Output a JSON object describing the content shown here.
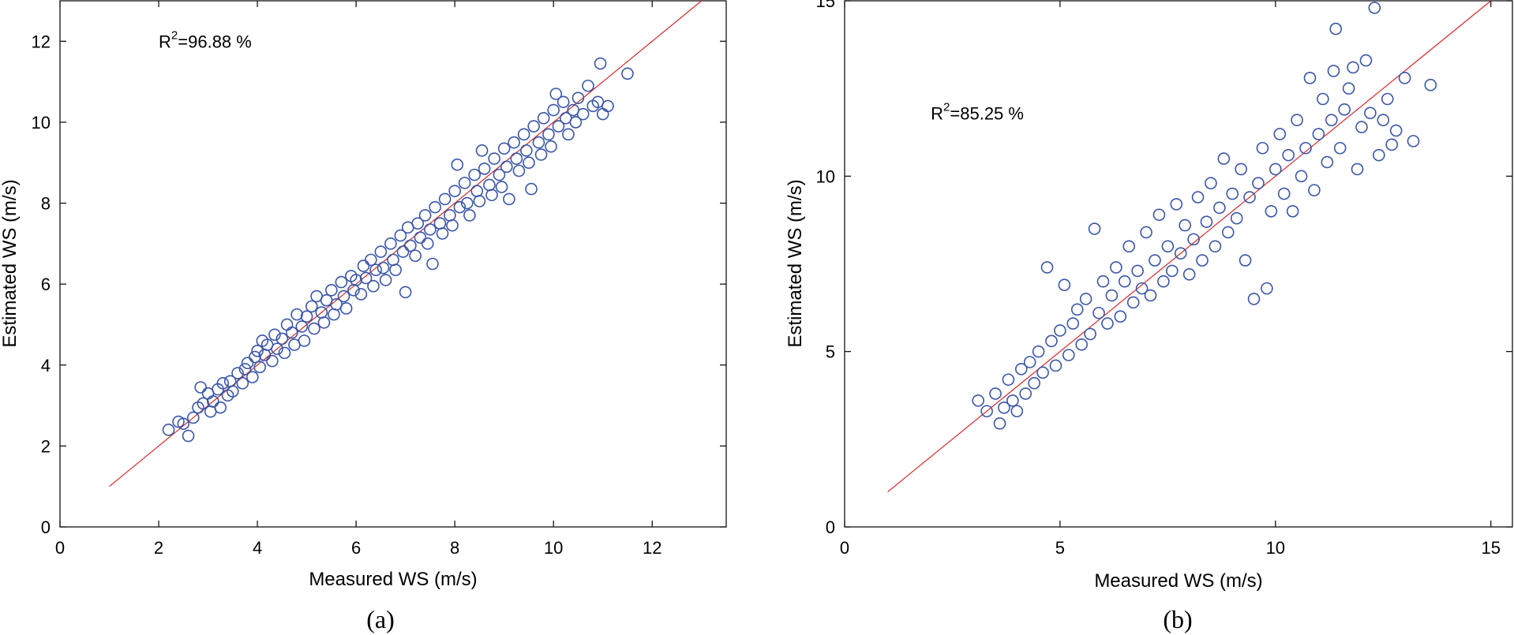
{
  "chart_data": [
    {
      "type": "scatter",
      "id": "a",
      "caption": "(a)",
      "xlabel": "Measured WS (m/s)",
      "ylabel": "Estimated WS (m/s)",
      "xlim": [
        0,
        13.5
      ],
      "ylim": [
        0,
        13
      ],
      "xticks": [
        0,
        2,
        4,
        6,
        8,
        10,
        12
      ],
      "yticks": [
        0,
        2,
        4,
        6,
        8,
        10,
        12
      ],
      "xtick_labels": [
        "0",
        "2",
        "4",
        "6",
        "8",
        "10",
        "12"
      ],
      "ytick_labels": [
        "0",
        "2",
        "4",
        "6",
        "8",
        "10",
        "12"
      ],
      "annotation": {
        "base": "R",
        "sup": "2",
        "rest": "=96.88 %"
      },
      "annotation_pos": [
        2,
        12
      ],
      "fit_line": {
        "x": [
          1,
          13
        ],
        "y": [
          1,
          13
        ]
      },
      "marker_color": "#3a56a8",
      "line_color": "#d42a2a",
      "points": [
        [
          2.2,
          2.4
        ],
        [
          2.4,
          2.6
        ],
        [
          2.5,
          2.55
        ],
        [
          2.6,
          2.25
        ],
        [
          2.7,
          2.7
        ],
        [
          2.8,
          2.95
        ],
        [
          2.85,
          3.45
        ],
        [
          2.9,
          3.05
        ],
        [
          3.0,
          3.3
        ],
        [
          3.05,
          2.85
        ],
        [
          3.1,
          3.1
        ],
        [
          3.2,
          3.4
        ],
        [
          3.25,
          2.95
        ],
        [
          3.3,
          3.55
        ],
        [
          3.4,
          3.25
        ],
        [
          3.45,
          3.6
        ],
        [
          3.5,
          3.35
        ],
        [
          3.6,
          3.8
        ],
        [
          3.7,
          3.55
        ],
        [
          3.75,
          3.9
        ],
        [
          3.8,
          4.05
        ],
        [
          3.9,
          3.7
        ],
        [
          3.95,
          4.2
        ],
        [
          4.0,
          4.35
        ],
        [
          4.05,
          3.95
        ],
        [
          4.1,
          4.6
        ],
        [
          4.15,
          4.25
        ],
        [
          4.2,
          4.5
        ],
        [
          4.3,
          4.1
        ],
        [
          4.35,
          4.75
        ],
        [
          4.4,
          4.4
        ],
        [
          4.5,
          4.65
        ],
        [
          4.55,
          4.3
        ],
        [
          4.6,
          5.0
        ],
        [
          4.7,
          4.8
        ],
        [
          4.75,
          4.5
        ],
        [
          4.8,
          5.25
        ],
        [
          4.9,
          4.95
        ],
        [
          4.95,
          4.6
        ],
        [
          5.0,
          5.2
        ],
        [
          5.1,
          5.45
        ],
        [
          5.15,
          4.9
        ],
        [
          5.2,
          5.7
        ],
        [
          5.3,
          5.3
        ],
        [
          5.35,
          5.05
        ],
        [
          5.4,
          5.6
        ],
        [
          5.5,
          5.85
        ],
        [
          5.55,
          5.25
        ],
        [
          5.6,
          5.5
        ],
        [
          5.7,
          6.05
        ],
        [
          5.75,
          5.7
        ],
        [
          5.8,
          5.4
        ],
        [
          5.9,
          6.2
        ],
        [
          5.95,
          5.85
        ],
        [
          6.0,
          6.1
        ],
        [
          6.1,
          5.75
        ],
        [
          6.15,
          6.45
        ],
        [
          6.2,
          6.15
        ],
        [
          6.3,
          6.6
        ],
        [
          6.35,
          5.95
        ],
        [
          6.4,
          6.35
        ],
        [
          6.5,
          6.8
        ],
        [
          6.55,
          6.4
        ],
        [
          6.6,
          6.1
        ],
        [
          6.7,
          7.0
        ],
        [
          6.75,
          6.6
        ],
        [
          6.8,
          6.35
        ],
        [
          6.9,
          7.2
        ],
        [
          6.95,
          6.8
        ],
        [
          7.0,
          5.8
        ],
        [
          7.05,
          7.4
        ],
        [
          7.1,
          6.95
        ],
        [
          7.2,
          6.7
        ],
        [
          7.25,
          7.5
        ],
        [
          7.3,
          7.15
        ],
        [
          7.4,
          7.7
        ],
        [
          7.45,
          7.0
        ],
        [
          7.5,
          7.35
        ],
        [
          7.55,
          6.5
        ],
        [
          7.6,
          7.9
        ],
        [
          7.7,
          7.5
        ],
        [
          7.75,
          7.25
        ],
        [
          7.8,
          8.1
        ],
        [
          7.9,
          7.7
        ],
        [
          7.95,
          7.45
        ],
        [
          8.0,
          8.3
        ],
        [
          8.05,
          8.95
        ],
        [
          8.1,
          7.9
        ],
        [
          8.2,
          8.5
        ],
        [
          8.25,
          8.0
        ],
        [
          8.3,
          7.7
        ],
        [
          8.4,
          8.7
        ],
        [
          8.45,
          8.3
        ],
        [
          8.5,
          8.05
        ],
        [
          8.55,
          9.3
        ],
        [
          8.6,
          8.85
        ],
        [
          8.7,
          8.45
        ],
        [
          8.75,
          8.2
        ],
        [
          8.8,
          9.1
        ],
        [
          8.9,
          8.7
        ],
        [
          8.95,
          8.4
        ],
        [
          9.0,
          9.35
        ],
        [
          9.05,
          8.9
        ],
        [
          9.1,
          8.1
        ],
        [
          9.2,
          9.5
        ],
        [
          9.25,
          9.1
        ],
        [
          9.3,
          8.8
        ],
        [
          9.4,
          9.7
        ],
        [
          9.45,
          9.3
        ],
        [
          9.5,
          9.0
        ],
        [
          9.55,
          8.35
        ],
        [
          9.6,
          9.9
        ],
        [
          9.7,
          9.5
        ],
        [
          9.75,
          9.2
        ],
        [
          9.8,
          10.1
        ],
        [
          9.9,
          9.7
        ],
        [
          9.95,
          9.4
        ],
        [
          10.0,
          10.3
        ],
        [
          10.05,
          10.7
        ],
        [
          10.1,
          9.9
        ],
        [
          10.2,
          10.5
        ],
        [
          10.25,
          10.1
        ],
        [
          10.3,
          9.7
        ],
        [
          10.4,
          10.3
        ],
        [
          10.45,
          10.0
        ],
        [
          10.5,
          10.6
        ],
        [
          10.6,
          10.2
        ],
        [
          10.7,
          10.9
        ],
        [
          10.8,
          10.4
        ],
        [
          10.9,
          10.5
        ],
        [
          10.95,
          11.45
        ],
        [
          11.0,
          10.2
        ],
        [
          11.1,
          10.4
        ],
        [
          11.5,
          11.2
        ]
      ]
    },
    {
      "type": "scatter",
      "id": "b",
      "caption": "(b)",
      "xlabel": "Measured WS (m/s)",
      "ylabel": "Estimated WS (m/s)",
      "xlim": [
        0,
        15.5
      ],
      "ylim": [
        0,
        15
      ],
      "xticks": [
        0,
        5,
        10,
        15
      ],
      "yticks": [
        0,
        5,
        10,
        15
      ],
      "xtick_labels": [
        "0",
        "5",
        "10",
        "15"
      ],
      "ytick_labels": [
        "0",
        "5",
        "10",
        "15"
      ],
      "annotation": {
        "base": "R",
        "sup": "2",
        "rest": "=85.25 %"
      },
      "annotation_pos": [
        2,
        11.8
      ],
      "fit_line": {
        "x": [
          1,
          15
        ],
        "y": [
          1,
          15
        ]
      },
      "marker_color": "#3a56a8",
      "line_color": "#d42a2a",
      "points": [
        [
          3.1,
          3.6
        ],
        [
          3.3,
          3.3
        ],
        [
          3.5,
          3.8
        ],
        [
          3.6,
          2.95
        ],
        [
          3.7,
          3.4
        ],
        [
          3.8,
          4.2
        ],
        [
          3.9,
          3.6
        ],
        [
          4.0,
          3.3
        ],
        [
          4.1,
          4.5
        ],
        [
          4.2,
          3.8
        ],
        [
          4.3,
          4.7
        ],
        [
          4.4,
          4.1
        ],
        [
          4.5,
          5.0
        ],
        [
          4.6,
          4.4
        ],
        [
          4.7,
          7.4
        ],
        [
          4.8,
          5.3
        ],
        [
          4.9,
          4.6
        ],
        [
          5.0,
          5.6
        ],
        [
          5.1,
          6.9
        ],
        [
          5.2,
          4.9
        ],
        [
          5.3,
          5.8
        ],
        [
          5.4,
          6.2
        ],
        [
          5.5,
          5.2
        ],
        [
          5.6,
          6.5
        ],
        [
          5.7,
          5.5
        ],
        [
          5.8,
          8.5
        ],
        [
          5.9,
          6.1
        ],
        [
          6.0,
          7.0
        ],
        [
          6.1,
          5.8
        ],
        [
          6.2,
          6.6
        ],
        [
          6.3,
          7.4
        ],
        [
          6.4,
          6.0
        ],
        [
          6.5,
          7.0
        ],
        [
          6.6,
          8.0
        ],
        [
          6.7,
          6.4
        ],
        [
          6.8,
          7.3
        ],
        [
          6.9,
          6.8
        ],
        [
          7.0,
          8.4
        ],
        [
          7.1,
          6.6
        ],
        [
          7.2,
          7.6
        ],
        [
          7.3,
          8.9
        ],
        [
          7.4,
          7.0
        ],
        [
          7.5,
          8.0
        ],
        [
          7.6,
          7.3
        ],
        [
          7.7,
          9.2
        ],
        [
          7.8,
          7.8
        ],
        [
          7.9,
          8.6
        ],
        [
          8.0,
          7.2
        ],
        [
          8.1,
          8.2
        ],
        [
          8.2,
          9.4
        ],
        [
          8.3,
          7.6
        ],
        [
          8.4,
          8.7
        ],
        [
          8.5,
          9.8
        ],
        [
          8.6,
          8.0
        ],
        [
          8.7,
          9.1
        ],
        [
          8.8,
          10.5
        ],
        [
          8.9,
          8.4
        ],
        [
          9.0,
          9.5
        ],
        [
          9.1,
          8.8
        ],
        [
          9.2,
          10.2
        ],
        [
          9.3,
          7.6
        ],
        [
          9.4,
          9.4
        ],
        [
          9.5,
          6.5
        ],
        [
          9.6,
          9.8
        ],
        [
          9.7,
          10.8
        ],
        [
          9.8,
          6.8
        ],
        [
          9.9,
          9.0
        ],
        [
          10.0,
          10.2
        ],
        [
          10.1,
          11.2
        ],
        [
          10.2,
          9.5
        ],
        [
          10.3,
          10.6
        ],
        [
          10.4,
          9.0
        ],
        [
          10.5,
          11.6
        ],
        [
          10.6,
          10.0
        ],
        [
          10.7,
          10.8
        ],
        [
          10.8,
          12.8
        ],
        [
          10.9,
          9.6
        ],
        [
          11.0,
          11.2
        ],
        [
          11.1,
          12.2
        ],
        [
          11.2,
          10.4
        ],
        [
          11.3,
          11.6
        ],
        [
          11.35,
          13.0
        ],
        [
          11.4,
          14.2
        ],
        [
          11.5,
          10.8
        ],
        [
          11.6,
          11.9
        ],
        [
          11.7,
          12.5
        ],
        [
          11.8,
          13.1
        ],
        [
          11.9,
          10.2
        ],
        [
          12.0,
          11.4
        ],
        [
          12.1,
          13.3
        ],
        [
          12.2,
          11.8
        ],
        [
          12.3,
          14.8
        ],
        [
          12.4,
          10.6
        ],
        [
          12.5,
          11.6
        ],
        [
          12.6,
          12.2
        ],
        [
          12.7,
          10.9
        ],
        [
          12.8,
          11.3
        ],
        [
          13.0,
          12.8
        ],
        [
          13.2,
          11.0
        ],
        [
          13.6,
          12.6
        ]
      ]
    }
  ]
}
